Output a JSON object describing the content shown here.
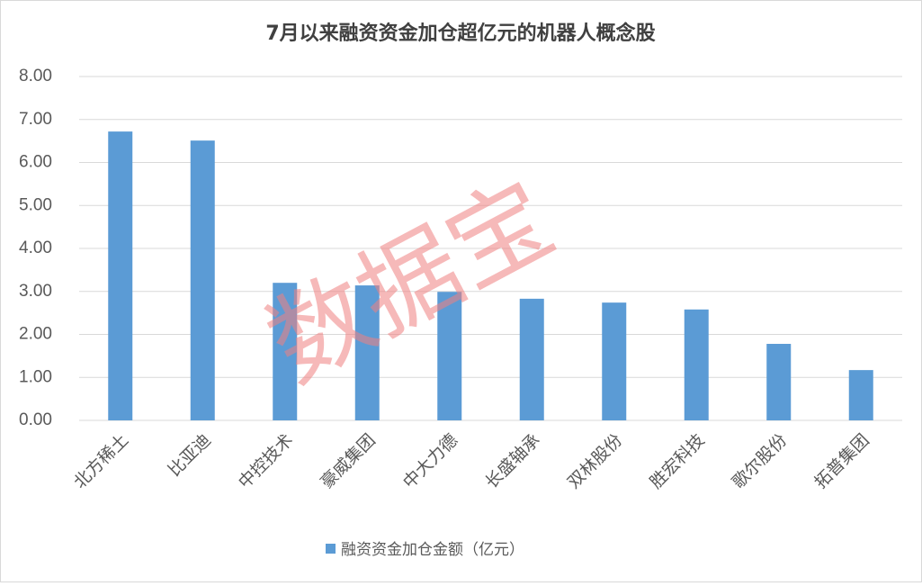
{
  "chart_data": {
    "type": "bar",
    "title": "7月以来融资资金加仓超亿元的机器人概念股",
    "watermark": "数据宝",
    "categories": [
      "北方稀土",
      "比亚迪",
      "中控技术",
      "豪威集团",
      "中大力德",
      "长盛轴承",
      "双林股份",
      "胜宏科技",
      "歌尔股份",
      "拓普集团"
    ],
    "series": [
      {
        "name": "融资资金加仓金额（亿元）",
        "color": "#5b9bd5",
        "values": [
          6.72,
          6.51,
          3.2,
          3.14,
          2.99,
          2.83,
          2.74,
          2.58,
          1.78,
          1.17
        ]
      }
    ],
    "ylim": [
      0,
      8
    ],
    "yticks": [
      {
        "value": 0,
        "label": "0.00"
      },
      {
        "value": 1,
        "label": "1.00"
      },
      {
        "value": 2,
        "label": "2.00"
      },
      {
        "value": 3,
        "label": "3.00"
      },
      {
        "value": 4,
        "label": "4.00"
      },
      {
        "value": 5,
        "label": "5.00"
      },
      {
        "value": 6,
        "label": "6.00"
      },
      {
        "value": 7,
        "label": "7.00"
      },
      {
        "value": 8,
        "label": "8.00"
      }
    ],
    "grid": true,
    "legend": "bottom"
  }
}
